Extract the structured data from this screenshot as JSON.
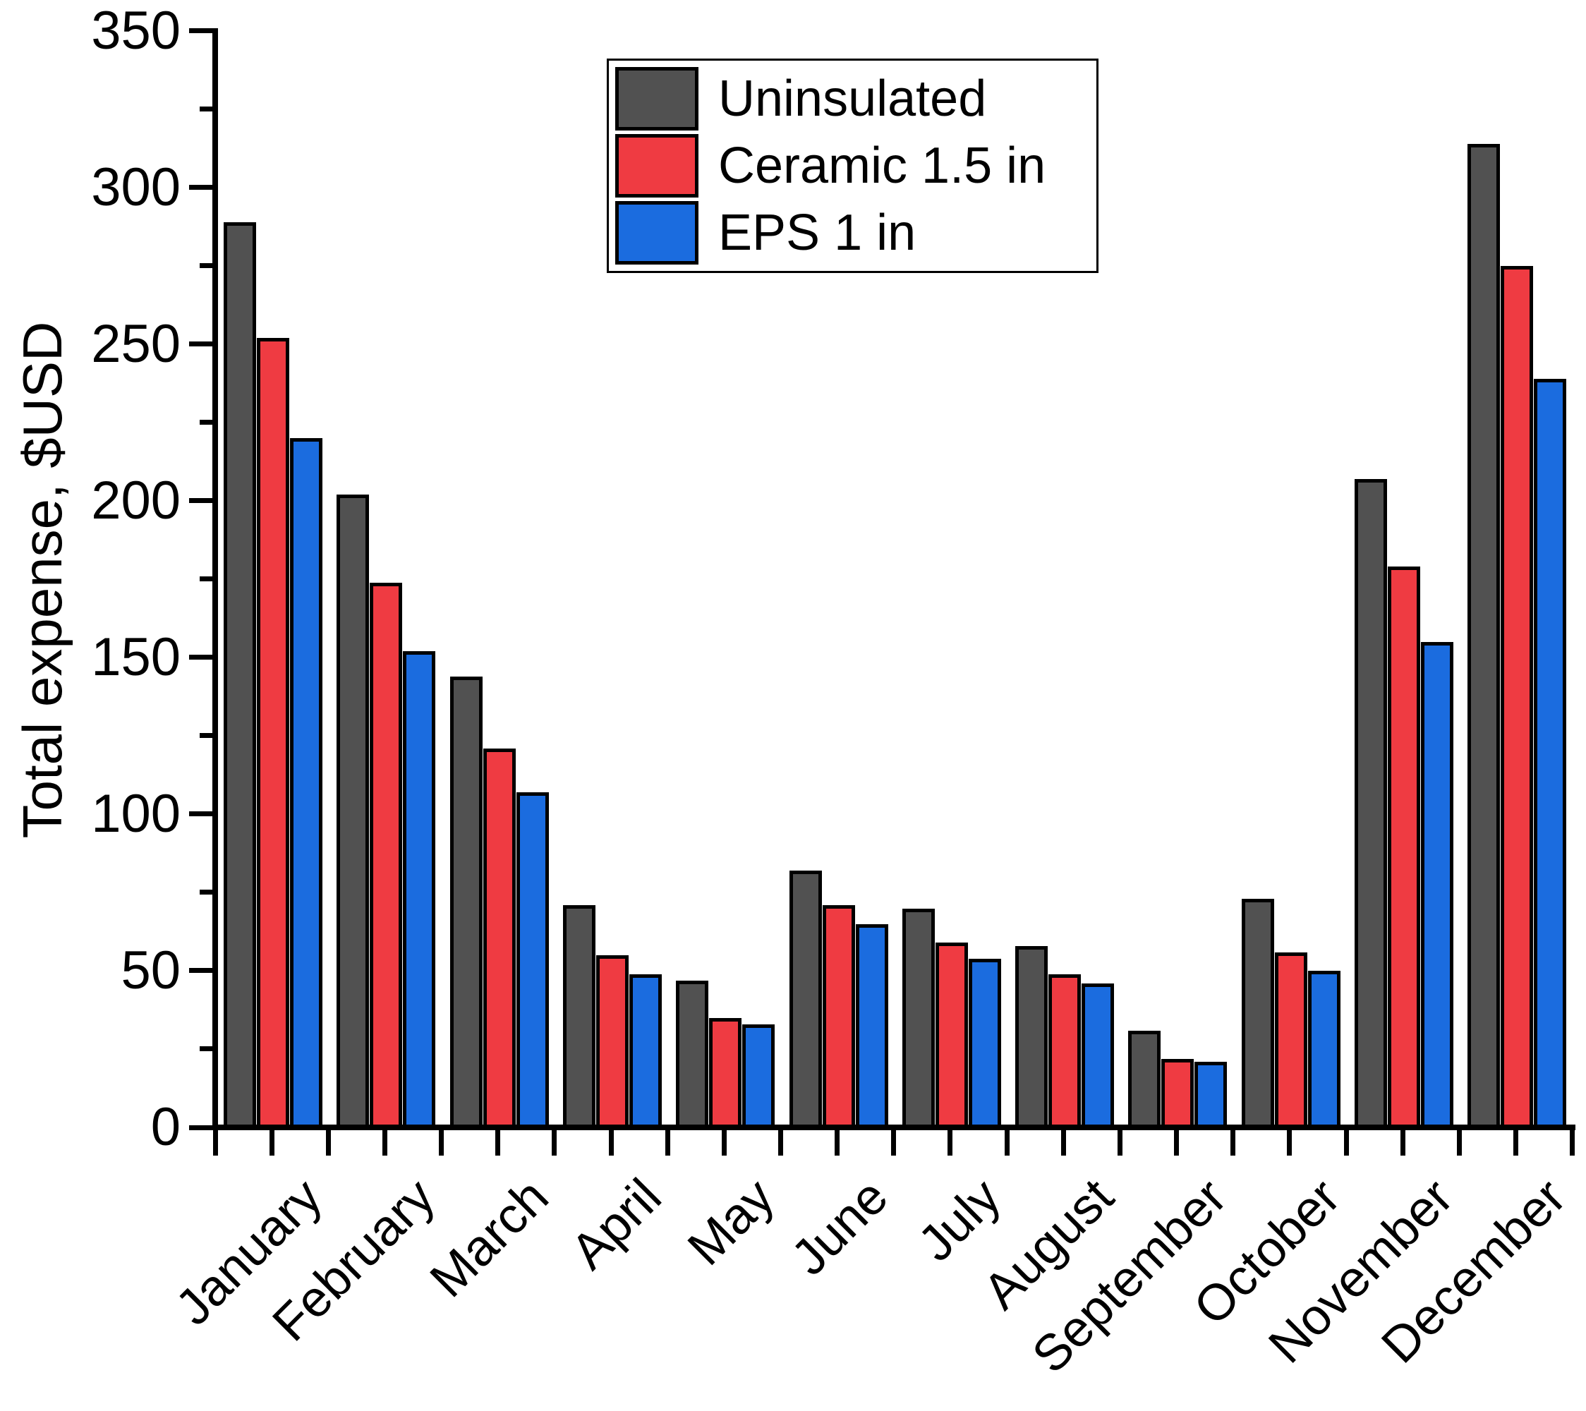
{
  "chart_data": {
    "type": "bar",
    "title": "",
    "ylabel": "Total expense, $USD",
    "xlabel": "",
    "ylim": [
      0,
      350
    ],
    "yticks": [
      0,
      50,
      100,
      150,
      200,
      250,
      300,
      350
    ],
    "ytick_interval": 50,
    "yminor_interval": 25,
    "grid": false,
    "legend_position": "top-center",
    "bar_edge_color": "#000000",
    "categories": [
      "January",
      "February",
      "March",
      "April",
      "May",
      "June",
      "July",
      "August",
      "September",
      "October",
      "November",
      "December"
    ],
    "series": [
      {
        "name": "Uninsulated",
        "color": "#515151",
        "values": [
          288,
          201,
          143,
          70,
          46,
          81,
          69,
          57,
          30,
          72,
          206,
          313
        ]
      },
      {
        "name": "Ceramic 1.5 in",
        "color": "#EF3B42",
        "values": [
          251,
          173,
          120,
          54,
          34,
          70,
          58,
          48,
          21,
          55,
          178,
          274
        ]
      },
      {
        "name": "EPS 1 in",
        "color": "#1B6CDF",
        "values": [
          219,
          151,
          106,
          48,
          32,
          64,
          53,
          45,
          20,
          49,
          154,
          238
        ]
      }
    ]
  }
}
